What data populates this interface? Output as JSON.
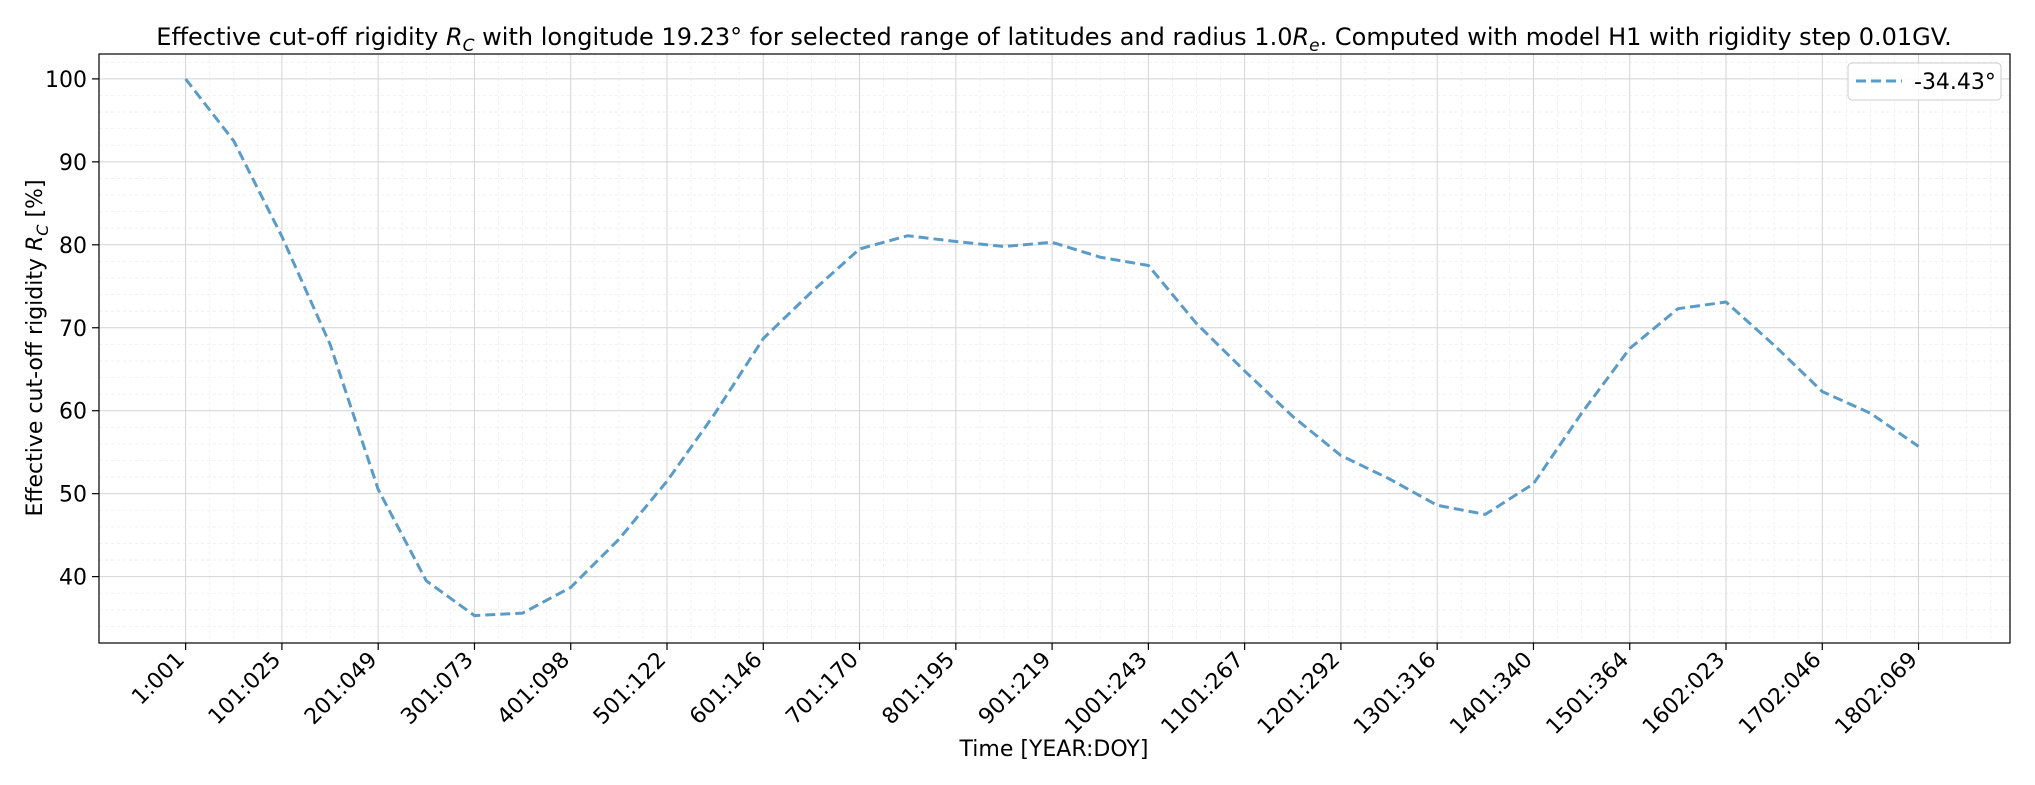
{
  "chart_data": {
    "type": "line",
    "title": {
      "lead": "Effective cut-off rigidity ",
      "sym": "R",
      "sub": "C",
      "mid": " with longitude 19.23° for selected range of latitudes and radius 1.0",
      "sym2": "R",
      "sub2": "e",
      "tail": ". Computed with model H1 with rigidity step 0.01GV."
    },
    "xlabel": "Time [YEAR:DOY]",
    "ylabel": {
      "lead": "Effective cut-off rigidity ",
      "sym": "R",
      "sub": "C",
      "tail": " [%]"
    },
    "categories": [
      "1:001",
      "101:025",
      "201:049",
      "301:073",
      "401:098",
      "501:122",
      "601:146",
      "701:170",
      "801:195",
      "901:219",
      "1001:243",
      "1101:267",
      "1201:292",
      "1301:316",
      "1401:340",
      "1501:364",
      "1602:023",
      "1702:046",
      "1802:069"
    ],
    "xlim": [
      -0.9,
      18.95
    ],
    "ylim": [
      32,
      103
    ],
    "yticks": [
      40,
      50,
      60,
      70,
      80,
      90,
      100
    ],
    "grid": true,
    "legend": "top-right",
    "series": [
      {
        "name": "-34.43°",
        "color": "#5b9bc8",
        "style": "dashed",
        "x": [
          0,
          0.5,
          1,
          1.5,
          2,
          2.5,
          3,
          3.5,
          4,
          4.5,
          5,
          5.5,
          6,
          6.5,
          7,
          7.5,
          8,
          8.5,
          9,
          9.5,
          10,
          10.5,
          11,
          11.5,
          12,
          12.5,
          13,
          13.5,
          14,
          14.5,
          15,
          15.5,
          16,
          16.5,
          17,
          17.5,
          18
        ],
        "values": [
          100,
          92.5,
          81,
          68,
          50.5,
          39.5,
          35.3,
          35.6,
          38.7,
          44.5,
          51.5,
          59.7,
          68.7,
          74.3,
          79.5,
          81.1,
          80.4,
          79.8,
          80.3,
          78.5,
          77.5,
          70.5,
          64.8,
          59.3,
          54.6,
          51.8,
          48.6,
          47.5,
          51.2,
          59.7,
          67.5,
          72.3,
          73.1,
          67.9,
          62.3,
          59.7,
          55.7
        ]
      }
    ]
  }
}
